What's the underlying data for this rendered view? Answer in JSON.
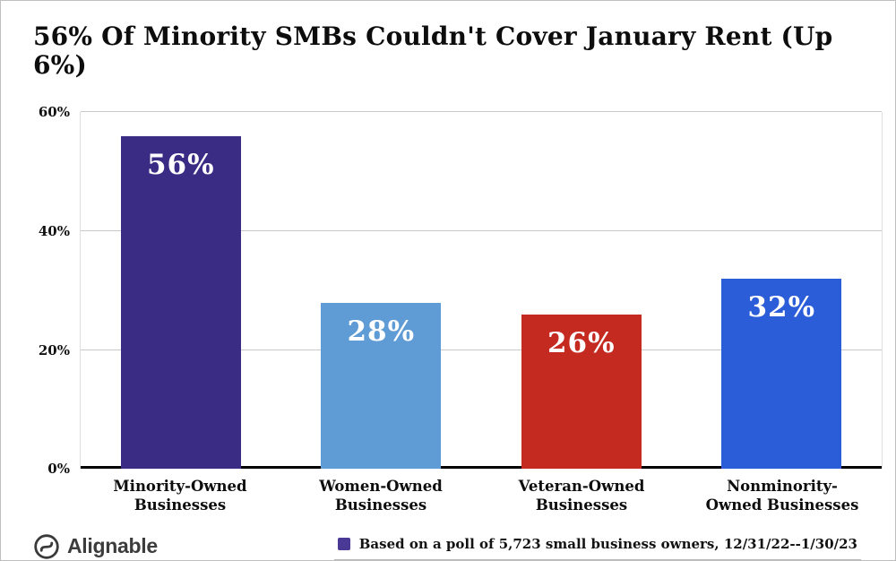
{
  "chart_data": {
    "type": "bar",
    "title": "56% Of Minority SMBs Couldn't Cover January Rent (Up 6%)",
    "categories": [
      "Minority-Owned Businesses",
      "Women-Owned Businesses",
      "Veteran-Owned Businesses",
      "Nonminority-Owned Businesses"
    ],
    "values": [
      56,
      28,
      26,
      32
    ],
    "value_labels": [
      "56%",
      "28%",
      "26%",
      "32%"
    ],
    "bar_colors": [
      "#3a2b85",
      "#5f9cd6",
      "#c52a21",
      "#2c5dd8"
    ],
    "xlabel": "",
    "ylabel": "",
    "ylim": [
      0,
      60
    ],
    "yticks": [
      0,
      20,
      40,
      60
    ],
    "ytick_labels": [
      "0%",
      "20%",
      "40%",
      "60%"
    ],
    "grid": true,
    "legend": {
      "position": "bottom-right",
      "marker_color": "#4a3a96",
      "text": "Based on a poll of 5,723 small business owners, 12/31/22--1/30/23"
    }
  },
  "footer": {
    "logo_text": "Alignable"
  },
  "colors": {
    "axis": "#000000",
    "gridline": "#c9c9c9",
    "background": "#ffffff",
    "bar_value_text": "#ffffff"
  }
}
